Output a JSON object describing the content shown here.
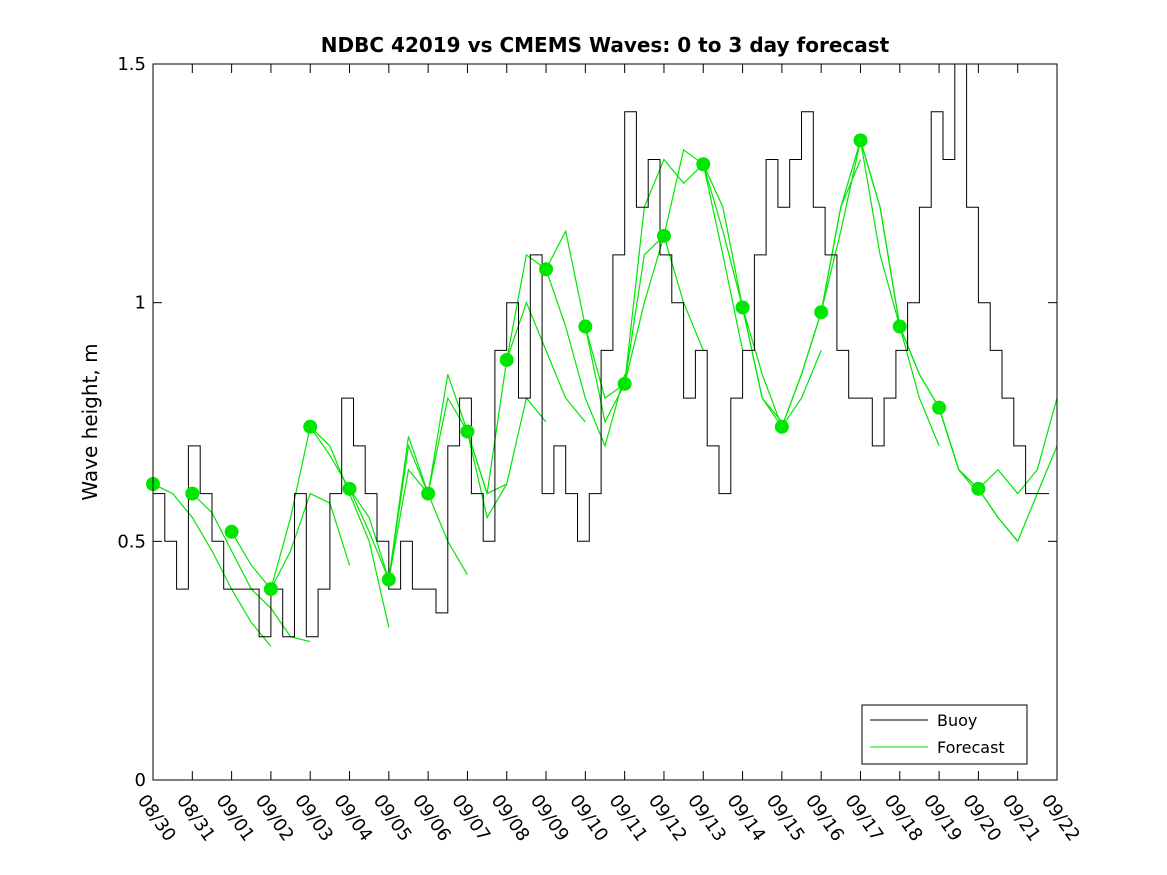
{
  "chart_data": {
    "type": "line",
    "title": "NDBC 42019 vs CMEMS Waves: 0 to 3 day forecast",
    "xlabel": "",
    "ylabel": "Wave height, m",
    "ylim": [
      0,
      1.5
    ],
    "xlim": [
      0,
      23
    ],
    "x_tick_labels": [
      "08/30",
      "08/31",
      "09/01",
      "09/02",
      "09/03",
      "09/04",
      "09/05",
      "09/06",
      "09/07",
      "09/08",
      "09/09",
      "09/10",
      "09/11",
      "09/12",
      "09/13",
      "09/14",
      "09/15",
      "09/16",
      "09/17",
      "09/18",
      "09/19",
      "09/20",
      "09/21",
      "09/22"
    ],
    "y_ticks": [
      0,
      0.5,
      1,
      1.5
    ],
    "y_tick_labels": [
      "0",
      "0.5",
      "1",
      "1.5"
    ],
    "legend": {
      "location": "bottom-right",
      "entries": [
        "Buoy",
        "Forecast"
      ]
    },
    "colors": {
      "buoy": "#000000",
      "forecast": "#00e600",
      "marker": "#00e600"
    },
    "buoy": {
      "name": "Buoy",
      "x": [
        0,
        0.3,
        0.6,
        0.9,
        1.2,
        1.5,
        1.8,
        2.1,
        2.4,
        2.7,
        3.0,
        3.3,
        3.6,
        3.9,
        4.2,
        4.5,
        4.8,
        5.1,
        5.4,
        5.7,
        6.0,
        6.3,
        6.6,
        6.9,
        7.2,
        7.5,
        7.8,
        8.1,
        8.4,
        8.7,
        9.0,
        9.3,
        9.6,
        9.9,
        10.2,
        10.5,
        10.8,
        11.1,
        11.4,
        11.7,
        12.0,
        12.3,
        12.6,
        12.9,
        13.2,
        13.5,
        13.8,
        14.1,
        14.4,
        14.7,
        15.0,
        15.3,
        15.6,
        15.9,
        16.2,
        16.5,
        16.8,
        17.1,
        17.4,
        17.7,
        18.0,
        18.3,
        18.6,
        18.9,
        19.2,
        19.5,
        19.8,
        20.1,
        20.4,
        20.7,
        21.0,
        21.3,
        21.6,
        21.9,
        22.2,
        22.5
      ],
      "values": [
        0.6,
        0.5,
        0.4,
        0.7,
        0.6,
        0.5,
        0.4,
        0.4,
        0.4,
        0.3,
        0.4,
        0.3,
        0.6,
        0.3,
        0.4,
        0.6,
        0.8,
        0.7,
        0.6,
        0.5,
        0.4,
        0.5,
        0.4,
        0.4,
        0.35,
        0.7,
        0.8,
        0.6,
        0.5,
        0.9,
        1.0,
        0.8,
        1.1,
        0.6,
        0.7,
        0.6,
        0.5,
        0.6,
        0.9,
        1.1,
        1.4,
        1.2,
        1.3,
        1.1,
        1.0,
        0.8,
        0.9,
        0.7,
        0.6,
        0.8,
        0.9,
        1.1,
        1.3,
        1.2,
        1.3,
        1.4,
        1.2,
        1.1,
        0.9,
        0.8,
        0.8,
        0.7,
        0.8,
        0.9,
        1.0,
        1.2,
        1.4,
        1.3,
        1.5,
        1.2,
        1.0,
        0.9,
        0.8,
        0.7,
        0.6,
        0.6
      ]
    },
    "forecast_markers": {
      "name": "Forecast",
      "x": [
        0,
        1,
        2,
        3,
        4,
        5,
        6,
        7,
        8,
        9,
        10,
        11,
        12,
        13,
        14,
        15,
        16,
        17,
        18,
        19,
        20,
        21
      ],
      "values": [
        0.62,
        0.6,
        0.52,
        0.4,
        0.74,
        0.61,
        0.42,
        0.6,
        0.73,
        0.88,
        1.07,
        0.95,
        0.83,
        1.14,
        1.29,
        0.99,
        0.74,
        0.98,
        1.34,
        0.95,
        0.78,
        0.61
      ]
    },
    "forecast_series": [
      {
        "name": "Forecast",
        "x": [
          0,
          0.5,
          1,
          1.5,
          2,
          2.5,
          3
        ],
        "values": [
          0.62,
          0.6,
          0.55,
          0.48,
          0.4,
          0.33,
          0.28
        ]
      },
      {
        "name": "Forecast",
        "x": [
          1,
          1.5,
          2,
          2.5,
          3,
          3.5,
          4
        ],
        "values": [
          0.6,
          0.56,
          0.48,
          0.4,
          0.36,
          0.3,
          0.29
        ]
      },
      {
        "name": "Forecast",
        "x": [
          2,
          2.5,
          3,
          3.5,
          4,
          4.5,
          5
        ],
        "values": [
          0.52,
          0.45,
          0.4,
          0.48,
          0.6,
          0.58,
          0.45
        ]
      },
      {
        "name": "Forecast",
        "x": [
          3,
          3.5,
          4,
          4.5,
          5,
          5.5,
          6
        ],
        "values": [
          0.4,
          0.55,
          0.74,
          0.7,
          0.6,
          0.5,
          0.32
        ]
      },
      {
        "name": "Forecast",
        "x": [
          4,
          4.5,
          5,
          5.5,
          6,
          6.5,
          7
        ],
        "values": [
          0.74,
          0.68,
          0.61,
          0.55,
          0.42,
          0.65,
          0.6
        ]
      },
      {
        "name": "Forecast",
        "x": [
          5,
          5.5,
          6,
          6.5,
          7,
          7.5,
          8
        ],
        "values": [
          0.61,
          0.52,
          0.42,
          0.7,
          0.6,
          0.5,
          0.43
        ]
      },
      {
        "name": "Forecast",
        "x": [
          6,
          6.5,
          7,
          7.5,
          8,
          8.5,
          9
        ],
        "values": [
          0.42,
          0.72,
          0.6,
          0.8,
          0.73,
          0.6,
          0.62
        ]
      },
      {
        "name": "Forecast",
        "x": [
          7,
          7.5,
          8,
          8.5,
          9,
          9.5,
          10
        ],
        "values": [
          0.6,
          0.85,
          0.73,
          0.55,
          0.62,
          0.8,
          0.75
        ]
      },
      {
        "name": "Forecast",
        "x": [
          8,
          8.5,
          9,
          9.5,
          10,
          10.5,
          11
        ],
        "values": [
          0.73,
          0.6,
          0.88,
          1.0,
          0.9,
          0.8,
          0.75
        ]
      },
      {
        "name": "Forecast",
        "x": [
          9,
          9.5,
          10,
          10.5,
          11,
          11.5,
          12
        ],
        "values": [
          0.88,
          1.1,
          1.07,
          0.95,
          0.8,
          0.7,
          0.85
        ]
      },
      {
        "name": "Forecast",
        "x": [
          10,
          10.5,
          11,
          11.5,
          12,
          12.5,
          13
        ],
        "values": [
          1.07,
          1.15,
          0.95,
          0.8,
          0.83,
          1.0,
          1.14
        ]
      },
      {
        "name": "Forecast",
        "x": [
          11,
          11.5,
          12,
          12.5,
          13,
          13.5,
          14
        ],
        "values": [
          0.95,
          0.75,
          0.83,
          1.1,
          1.14,
          1.0,
          0.9
        ]
      },
      {
        "name": "Forecast",
        "x": [
          12,
          12.5,
          13,
          13.5,
          14,
          14.5,
          15
        ],
        "values": [
          0.83,
          1.2,
          1.3,
          1.25,
          1.29,
          1.1,
          0.9
        ]
      },
      {
        "name": "Forecast",
        "x": [
          13,
          13.5,
          14,
          14.5,
          15,
          15.5,
          16
        ],
        "values": [
          1.14,
          1.32,
          1.29,
          1.15,
          0.99,
          0.8,
          0.75
        ]
      },
      {
        "name": "Forecast",
        "x": [
          14,
          14.5,
          15,
          15.5,
          16,
          16.5,
          17
        ],
        "values": [
          1.29,
          1.2,
          0.99,
          0.85,
          0.74,
          0.8,
          0.9
        ]
      },
      {
        "name": "Forecast",
        "x": [
          15,
          15.5,
          16,
          16.5,
          17,
          17.5,
          18
        ],
        "values": [
          0.99,
          0.8,
          0.74,
          0.85,
          0.98,
          1.2,
          1.3
        ]
      },
      {
        "name": "Forecast",
        "x": [
          16,
          16.5,
          17,
          17.5,
          18,
          18.5,
          19
        ],
        "values": [
          0.74,
          0.85,
          0.98,
          1.15,
          1.34,
          1.2,
          0.95
        ]
      },
      {
        "name": "Forecast",
        "x": [
          17,
          17.5,
          18,
          18.5,
          19,
          19.5,
          20
        ],
        "values": [
          0.98,
          1.2,
          1.34,
          1.2,
          0.95,
          0.8,
          0.7
        ]
      },
      {
        "name": "Forecast",
        "x": [
          18,
          18.5,
          19,
          19.5,
          20,
          20.5,
          21
        ],
        "values": [
          1.34,
          1.1,
          0.95,
          0.85,
          0.78,
          0.65,
          0.6
        ]
      },
      {
        "name": "Forecast",
        "x": [
          19,
          19.5,
          20,
          20.5,
          21,
          21.5,
          22
        ],
        "values": [
          0.95,
          0.85,
          0.78,
          0.65,
          0.61,
          0.55,
          0.5
        ]
      },
      {
        "name": "Forecast",
        "x": [
          20,
          20.5,
          21,
          21.5,
          22,
          22.5,
          23
        ],
        "values": [
          0.78,
          0.65,
          0.61,
          0.65,
          0.6,
          0.65,
          0.8
        ]
      },
      {
        "name": "Forecast",
        "x": [
          21,
          21.5,
          22,
          22.5,
          23
        ],
        "values": [
          0.61,
          0.55,
          0.5,
          0.6,
          0.7
        ]
      }
    ]
  }
}
